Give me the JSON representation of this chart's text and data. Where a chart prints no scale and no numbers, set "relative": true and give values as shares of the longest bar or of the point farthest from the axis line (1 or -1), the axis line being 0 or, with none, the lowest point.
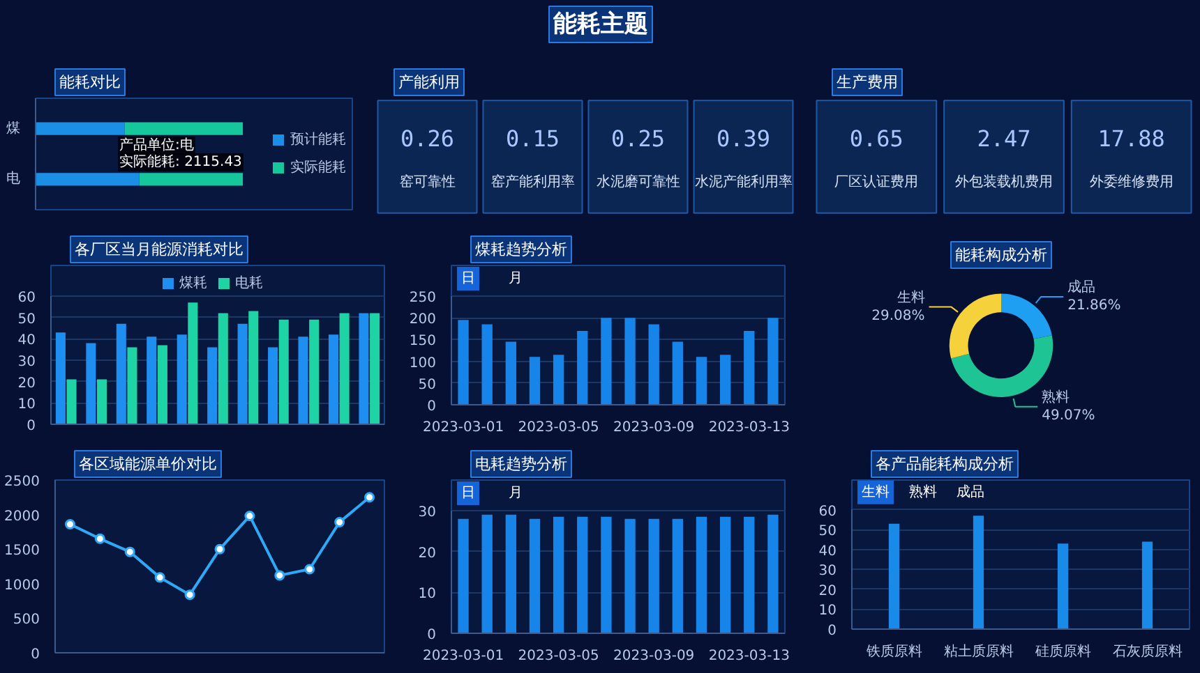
{
  "chart_data": [
    {
      "type": "other",
      "title": "能耗主题"
    },
    {
      "type": "bar",
      "title": "能耗对比",
      "orientation": "horizontal",
      "stacked": true,
      "relative": true,
      "categories": [
        "煤",
        "电"
      ],
      "series": [
        {
          "name": "预计能耗",
          "color": "#1b8fe6",
          "values": [
            0.43,
            0.5
          ]
        },
        {
          "name": "实际能耗",
          "color": "#16c79c",
          "values": [
            0.57,
            0.5
          ]
        }
      ],
      "legend": "right",
      "annotations": [
        "产品单位:电",
        "实际能耗: 2115.43"
      ]
    },
    {
      "type": "other",
      "title": "产能利用",
      "categories": [
        "窑可靠性",
        "窑产能利用率",
        "水泥磨可靠性",
        "水泥产能利用率"
      ],
      "values": [
        0.26,
        0.15,
        0.25,
        0.39
      ],
      "data_labels": true
    },
    {
      "type": "other",
      "title": "生产费用",
      "categories": [
        "厂区认证费用",
        "外包装载机费用",
        "外委维修费用"
      ],
      "values": [
        0.65,
        2.47,
        17.88
      ],
      "data_labels": true
    },
    {
      "type": "bar",
      "title": "各厂区当月能源消耗对比",
      "categories": [
        null,
        null,
        null,
        null,
        null,
        null,
        null,
        null,
        null,
        null,
        null
      ],
      "series": [
        {
          "name": "煤耗",
          "color": "#1e8ef0",
          "values": [
            43,
            38,
            47,
            41,
            42,
            36,
            47,
            36,
            41,
            42,
            52
          ]
        },
        {
          "name": "电耗",
          "color": "#1ed4a4",
          "values": [
            21,
            21,
            36,
            37,
            57,
            52,
            53,
            49,
            49,
            52,
            52
          ]
        }
      ],
      "ylim": [
        0,
        60
      ],
      "yticks": [
        0,
        10,
        20,
        30,
        40,
        50,
        60
      ],
      "grid": "y",
      "legend": "top"
    },
    {
      "type": "bar",
      "title": "煤耗趋势分析",
      "categories": [
        "2023-03-01",
        null,
        null,
        null,
        "2023-03-05",
        null,
        null,
        null,
        "2023-03-09",
        null,
        null,
        null,
        "2023-03-13",
        null
      ],
      "values": [
        195,
        185,
        145,
        110,
        115,
        170,
        200,
        200,
        185,
        145,
        110,
        115,
        170,
        200
      ],
      "color": "#1684e8",
      "ylim": [
        0,
        250
      ],
      "yticks": [
        0,
        50,
        100,
        150,
        200,
        250
      ],
      "grid": "y",
      "annotations": [
        "日",
        "月"
      ]
    },
    {
      "type": "donut",
      "title": "能耗构成分析",
      "categories": [
        "成品",
        "熟料",
        "生料"
      ],
      "values": [
        21.86,
        49.07,
        29.08
      ],
      "colors": [
        "#1e9ff2",
        "#1fc495",
        "#f5d13c"
      ],
      "value_labels": [
        "21.86%",
        "49.07%",
        "29.08%"
      ]
    },
    {
      "type": "line",
      "title": "各区域能源单价对比",
      "categories": [
        null,
        null,
        null,
        null,
        null,
        null,
        null,
        null,
        null,
        null,
        null
      ],
      "values": [
        1860,
        1650,
        1460,
        1090,
        840,
        1500,
        1980,
        1120,
        1210,
        1890,
        2250
      ],
      "color": "#2fa9f5",
      "marker": "circle",
      "ylim": [
        0,
        2500
      ],
      "yticks": [
        0,
        500,
        1000,
        1500,
        2000,
        2500
      ]
    },
    {
      "type": "bar",
      "title": "电耗趋势分析",
      "categories": [
        "2023-03-01",
        null,
        null,
        null,
        "2023-03-05",
        null,
        null,
        null,
        "2023-03-09",
        null,
        null,
        null,
        "2023-03-13",
        null
      ],
      "values": [
        28,
        29,
        29,
        28,
        28.5,
        28.5,
        28.5,
        28,
        28,
        28,
        28.5,
        28.5,
        28.5,
        29
      ],
      "color": "#1684e8",
      "ylim": [
        0,
        30
      ],
      "yticks": [
        0,
        10,
        20,
        30
      ],
      "grid": "y",
      "annotations": [
        "日",
        "月"
      ]
    },
    {
      "type": "bar",
      "title": "各产品能耗构成分析",
      "categories": [
        "铁质原料",
        "粘土质原料",
        "硅质原料",
        "石灰质原料"
      ],
      "values": [
        53,
        57,
        43,
        44
      ],
      "color": "#1a8ae8",
      "ylim": [
        0,
        60
      ],
      "yticks": [
        0,
        10,
        20,
        30,
        40,
        50,
        60
      ],
      "grid": "y",
      "annotations": [
        "生料",
        "熟料",
        "成品"
      ]
    }
  ]
}
